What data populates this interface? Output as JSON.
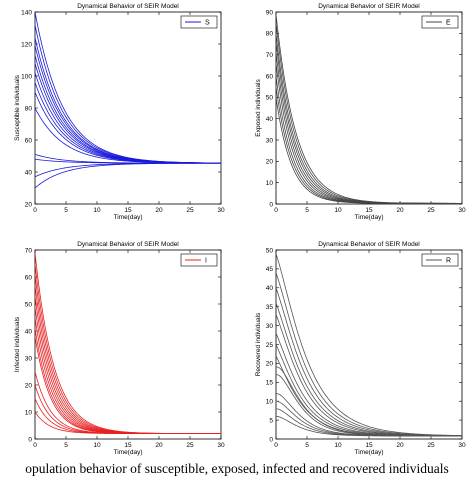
{
  "caption": "opulation behavior of susceptible, exposed, infected and recovered individuals",
  "chart_data": [
    {
      "type": "line",
      "title": "Dynamical Behavior of SEIR Model",
      "xlabel": "Time(day)",
      "ylabel": "Susceptible individuals",
      "xlim": [
        0,
        30
      ],
      "ylim": [
        20,
        140
      ],
      "xticks": [
        0,
        5,
        10,
        15,
        20,
        25,
        30
      ],
      "yticks": [
        20,
        40,
        60,
        80,
        100,
        120,
        140
      ],
      "legend": {
        "label": "S",
        "position": "top-right"
      },
      "color": "#1a1adb",
      "equilibrium": 45.5,
      "rate": 0.22,
      "initial_values": [
        140,
        132,
        124,
        119,
        113,
        108,
        102,
        96,
        90,
        80,
        51,
        48,
        37,
        30
      ]
    },
    {
      "type": "line",
      "title": "Dynamical Behavior of SEIR Model",
      "xlabel": "Time(day)",
      "ylabel": "Exposed individuals",
      "xlim": [
        0,
        30
      ],
      "ylim": [
        0,
        90
      ],
      "xticks": [
        0,
        5,
        10,
        15,
        20,
        25,
        30
      ],
      "yticks": [
        0,
        10,
        20,
        30,
        40,
        50,
        60,
        70,
        80,
        90
      ],
      "legend": {
        "label": "E",
        "position": "top-right"
      },
      "color": "#444444",
      "equilibrium": 0.3,
      "rate": 0.36,
      "initial_values": [
        89,
        85,
        80,
        76,
        71,
        66,
        60,
        55,
        50
      ]
    },
    {
      "type": "line",
      "title": "Dynamical Behavior of SEIR Model",
      "xlabel": "Time(day)",
      "ylabel": "Infected individuals",
      "xlim": [
        0,
        30
      ],
      "ylim": [
        0,
        70
      ],
      "xticks": [
        0,
        5,
        10,
        15,
        20,
        25,
        30
      ],
      "yticks": [
        0,
        10,
        20,
        30,
        40,
        50,
        60,
        70
      ],
      "legend": {
        "label": "I",
        "position": "top-right"
      },
      "color": "#e82020",
      "equilibrium": 2,
      "rate": 0.38,
      "initial_values": [
        69,
        65,
        61,
        57,
        53,
        49,
        45,
        41,
        38,
        25,
        20,
        15,
        10
      ]
    },
    {
      "type": "line",
      "title": "Dynamical Behavior of SEIR Model",
      "xlabel": "Time(day)",
      "ylabel": "Recovered individuals",
      "xlim": [
        0,
        30
      ],
      "ylim": [
        0,
        50
      ],
      "xticks": [
        0,
        5,
        10,
        15,
        20,
        25,
        30
      ],
      "yticks": [
        0,
        5,
        10,
        15,
        20,
        25,
        30,
        35,
        40,
        45,
        50
      ],
      "legend": {
        "label": "R",
        "position": "top-right"
      },
      "color": "#555555",
      "equilibrium": 0.8,
      "initial_values": [
        49,
        44,
        40,
        36,
        33,
        28,
        25,
        22,
        19,
        17,
        12,
        10,
        8,
        6
      ]
    }
  ]
}
